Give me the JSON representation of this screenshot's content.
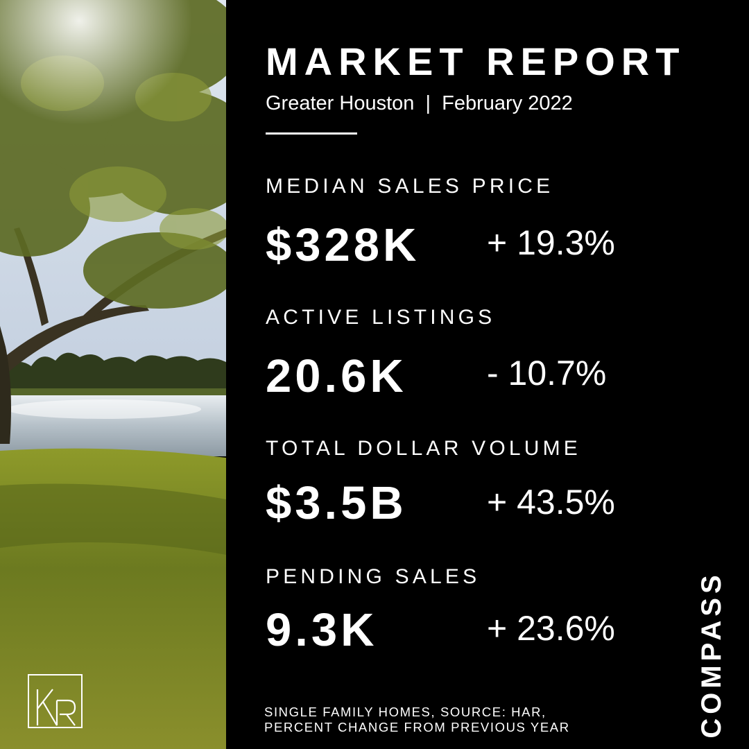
{
  "report": {
    "title": "MARKET REPORT",
    "subtitle": "Greater Houston  |  February 2022"
  },
  "metrics": [
    {
      "label": "MEDIAN SALES PRICE",
      "value": "$328K",
      "change": "+ 19.3%"
    },
    {
      "label": "ACTIVE LISTINGS",
      "value": "20.6K",
      "change": "- 10.7%"
    },
    {
      "label": "TOTAL DOLLAR VOLUME",
      "value": "$3.5B",
      "change": "+ 43.5%"
    },
    {
      "label": "PENDING SALES",
      "value": "9.3K",
      "change": "+ 23.6%"
    }
  ],
  "footnote": {
    "line1": "SINGLE FAMILY HOMES, SOURCE: HAR,",
    "line2": "PERCENT CHANGE FROM PREVIOUS YEAR"
  },
  "brand": "COMPASS",
  "logo_text": "KR",
  "colors": {
    "background": "#000000",
    "text": "#ffffff",
    "sky": "#c9d4e2",
    "water": "#b9c3cc",
    "grass": "#6f7d22",
    "foliage": "#4d5a1e"
  }
}
